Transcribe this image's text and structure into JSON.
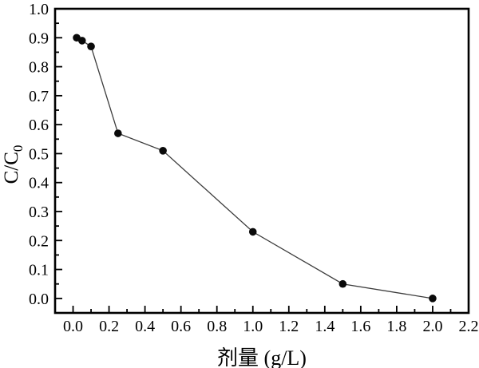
{
  "figure": {
    "xlabel": "剂量 (g/L)",
    "ylabel_main": "C/C",
    "ylabel_sub": "0",
    "background": "#ffffff"
  },
  "chart_data": {
    "type": "scatter",
    "title": "",
    "xlabel": "剂量 (g/L)",
    "ylabel": "C/C0",
    "x": [
      0.02,
      0.05,
      0.1,
      0.25,
      0.5,
      1.0,
      1.5,
      2.0
    ],
    "y": [
      0.9,
      0.89,
      0.87,
      0.57,
      0.51,
      0.23,
      0.05,
      0.0
    ],
    "xlim": [
      -0.1,
      2.2
    ],
    "ylim": [
      -0.05,
      1.0
    ],
    "x_tick_values": [
      0.0,
      0.2,
      0.4,
      0.6,
      0.8,
      1.0,
      1.2,
      1.4,
      1.6,
      1.8,
      2.0,
      2.2
    ],
    "x_tick_labels": [
      "0.0",
      "0.2",
      "0.4",
      "0.6",
      "0.8",
      "1.0",
      "1.2",
      "1.4",
      "1.6",
      "1.8",
      "2.0",
      "2.2"
    ],
    "y_tick_values": [
      0.0,
      0.1,
      0.2,
      0.3,
      0.4,
      0.5,
      0.6,
      0.7,
      0.8,
      0.9,
      1.0
    ],
    "y_tick_labels": [
      "0.0",
      "0.1",
      "0.2",
      "0.3",
      "0.4",
      "0.5",
      "0.6",
      "0.7",
      "0.8",
      "0.9",
      "1.0"
    ],
    "x_minor_step": 0.1,
    "y_minor_step": 0.05,
    "grid": false,
    "legend": null,
    "marker": "circle",
    "marker_color": "#0a0a0a",
    "line_color": "#3c3c3c",
    "axis_color": "#000000",
    "tick_label_color": "#000000"
  }
}
